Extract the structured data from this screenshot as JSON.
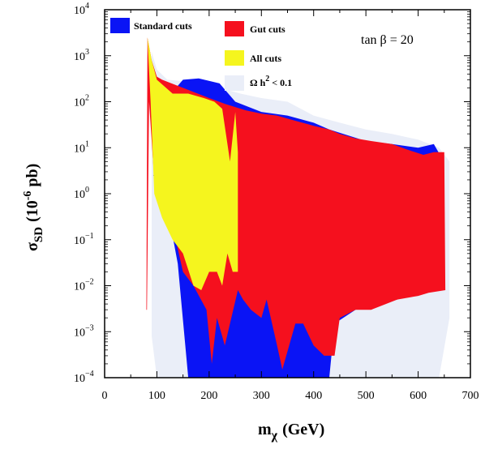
{
  "chart_data": {
    "type": "area",
    "title": "",
    "x_axis": {
      "label_main": "m",
      "label_sub": "χ",
      "label_unit": "(GeV)",
      "lim": [
        0,
        700
      ],
      "ticks": [
        0,
        100,
        200,
        300,
        400,
        500,
        600,
        700
      ],
      "tick_labels": [
        "0",
        "100",
        "200",
        "300",
        "400",
        "500",
        "600",
        "700"
      ]
    },
    "y_axis": {
      "label_main": "σ",
      "label_sub": "SD",
      "label_unit_pre": "(10",
      "label_unit_exp": "-6",
      "label_unit_post": " pb)",
      "scale": "log",
      "lim": [
        0.0001,
        10000
      ],
      "ticks": [
        {
          "value": 0.0001,
          "base": "10",
          "exp": "−4"
        },
        {
          "value": 0.001,
          "base": "10",
          "exp": "−3"
        },
        {
          "value": 0.01,
          "base": "10",
          "exp": "−2"
        },
        {
          "value": 0.1,
          "base": "10",
          "exp": "−1"
        },
        {
          "value": 1,
          "base": "10",
          "exp": "0"
        },
        {
          "value": 10,
          "base": "10",
          "exp": "1"
        },
        {
          "value": 100,
          "base": "10",
          "exp": "2"
        },
        {
          "value": 1000,
          "base": "10",
          "exp": "3"
        },
        {
          "value": 10000,
          "base": "10",
          "exp": "4"
        }
      ]
    },
    "annotation": {
      "text": "tan β = 20"
    },
    "legend": {
      "placement": "top",
      "entries": [
        {
          "label": "Standard cuts",
          "color": "#0a14f5"
        },
        {
          "label": "Gut cuts",
          "color": "#f5101e"
        },
        {
          "label": "All cuts",
          "color": "#f5f51e"
        },
        {
          "label_main": "Ω h",
          "label_exp": "2",
          "label_post": " < 0.1",
          "color": "#eaeef8"
        }
      ]
    },
    "series": [
      {
        "name": "Ω h2 < 0.1",
        "color": "#eaeef8",
        "upper": [
          [
            90,
            1200
          ],
          [
            100,
            500
          ],
          [
            120,
            300
          ],
          [
            150,
            280
          ],
          [
            180,
            260
          ],
          [
            220,
            200
          ],
          [
            260,
            150
          ],
          [
            300,
            120
          ],
          [
            350,
            100
          ],
          [
            400,
            50
          ],
          [
            450,
            35
          ],
          [
            500,
            25
          ],
          [
            550,
            20
          ],
          [
            600,
            15
          ],
          [
            640,
            10
          ],
          [
            660,
            5
          ]
        ],
        "lower": [
          [
            660,
            0.002
          ],
          [
            640,
            0.0001
          ],
          [
            600,
            0.0001
          ],
          [
            450,
            0.0001
          ],
          [
            440,
            0.0001
          ],
          [
            150,
            0.0001
          ],
          [
            100,
            0.0001
          ],
          [
            90,
            0.0008
          ]
        ]
      },
      {
        "name": "Standard cuts",
        "color": "#0a14f5",
        "upper": [
          [
            93,
            2.5
          ],
          [
            100,
            3
          ],
          [
            120,
            120
          ],
          [
            150,
            300
          ],
          [
            180,
            320
          ],
          [
            220,
            250
          ],
          [
            250,
            100
          ],
          [
            300,
            60
          ],
          [
            350,
            50
          ],
          [
            400,
            35
          ],
          [
            430,
            25
          ],
          [
            500,
            14
          ],
          [
            550,
            12
          ],
          [
            600,
            10
          ],
          [
            630,
            12
          ],
          [
            645,
            6
          ],
          [
            650,
            0.02
          ]
        ],
        "lower": [
          [
            650,
            0.02
          ],
          [
            630,
            0.015
          ],
          [
            600,
            0.01
          ],
          [
            560,
            0.005
          ],
          [
            510,
            0.004
          ],
          [
            480,
            0.003
          ],
          [
            440,
            0.0015
          ],
          [
            430,
            0.0001
          ],
          [
            415,
            0.0001
          ],
          [
            200,
            0.0001
          ],
          [
            160,
            0.0001
          ],
          [
            140,
            0.03
          ],
          [
            120,
            0.5
          ],
          [
            100,
            2
          ],
          [
            93,
            2.5
          ]
        ]
      },
      {
        "name": "Gut cuts",
        "color": "#f5101e",
        "upper": [
          [
            80,
            0.003
          ],
          [
            82,
            2500
          ],
          [
            90,
            800
          ],
          [
            100,
            350
          ],
          [
            110,
            300
          ],
          [
            150,
            200
          ],
          [
            200,
            120
          ],
          [
            230,
            90
          ],
          [
            270,
            65
          ],
          [
            300,
            55
          ],
          [
            330,
            50
          ],
          [
            360,
            40
          ],
          [
            400,
            30
          ],
          [
            430,
            25
          ],
          [
            450,
            20
          ],
          [
            480,
            16
          ],
          [
            510,
            14
          ],
          [
            550,
            12
          ],
          [
            580,
            9
          ],
          [
            610,
            7
          ],
          [
            630,
            8
          ],
          [
            650,
            8
          ]
        ],
        "lower": [
          [
            652,
            0.008
          ],
          [
            620,
            0.007
          ],
          [
            600,
            0.006
          ],
          [
            560,
            0.005
          ],
          [
            510,
            0.003
          ],
          [
            480,
            0.003
          ],
          [
            450,
            0.002
          ],
          [
            440,
            0.0003
          ],
          [
            420,
            0.0003
          ],
          [
            400,
            0.0005
          ],
          [
            380,
            0.0015
          ],
          [
            365,
            0.0015
          ],
          [
            340,
            0.00015
          ],
          [
            330,
            0.0005
          ],
          [
            310,
            0.005
          ],
          [
            300,
            0.002
          ],
          [
            280,
            0.003
          ],
          [
            265,
            0.005
          ],
          [
            255,
            0.008
          ],
          [
            230,
            0.0005
          ],
          [
            215,
            0.002
          ],
          [
            205,
            0.0002
          ],
          [
            195,
            0.003
          ],
          [
            170,
            0.01
          ],
          [
            150,
            0.02
          ],
          [
            130,
            0.2
          ],
          [
            110,
            1.0
          ],
          [
            95,
            2.0
          ],
          [
            85,
            100
          ],
          [
            81,
            0.003
          ]
        ]
      },
      {
        "name": "All cuts",
        "color": "#f5f51e",
        "upper": [
          [
            82,
            2500
          ],
          [
            90,
            800
          ],
          [
            100,
            300
          ],
          [
            130,
            150
          ],
          [
            160,
            150
          ],
          [
            190,
            120
          ],
          [
            210,
            100
          ],
          [
            225,
            70
          ],
          [
            240,
            5
          ],
          [
            250,
            60
          ],
          [
            255,
            8
          ]
        ],
        "lower": [
          [
            255,
            0.02
          ],
          [
            245,
            0.02
          ],
          [
            235,
            0.05
          ],
          [
            225,
            0.01
          ],
          [
            215,
            0.02
          ],
          [
            200,
            0.02
          ],
          [
            185,
            0.008
          ],
          [
            170,
            0.01
          ],
          [
            150,
            0.05
          ],
          [
            130,
            0.1
          ],
          [
            110,
            0.3
          ],
          [
            95,
            1.0
          ],
          [
            88,
            100
          ]
        ]
      }
    ]
  }
}
